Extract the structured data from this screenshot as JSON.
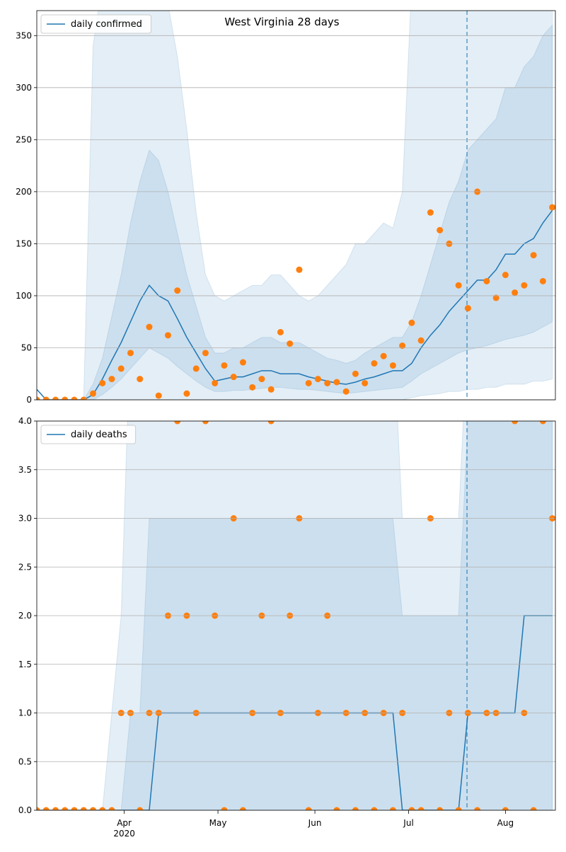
{
  "chart_data": [
    {
      "type": "line",
      "title": "West Virginia 28 days",
      "categories": [
        null,
        null,
        null,
        null,
        null,
        null,
        null,
        null,
        null,
        null,
        null,
        null,
        null,
        null,
        null,
        null,
        null,
        null,
        null,
        null,
        null,
        null,
        null,
        null,
        null,
        null,
        null,
        null,
        null,
        null,
        null,
        null,
        null,
        null,
        null,
        null,
        null,
        null,
        null,
        null,
        null,
        null,
        null,
        null,
        null,
        null,
        null,
        null,
        null,
        null,
        null,
        null,
        null,
        null,
        null,
        null
      ],
      "xlim": [
        0,
        55.33
      ],
      "ylim": [
        0,
        374
      ],
      "yticks": [
        0,
        50,
        100,
        150,
        200,
        250,
        300,
        350
      ],
      "grid": true,
      "legend": "upper left",
      "forecast_start": 45.9,
      "series": [
        {
          "name": "daily confirmed",
          "color": "#1f77b4",
          "values": [
            10,
            0,
            0,
            0,
            0,
            0,
            5,
            20,
            38,
            55,
            75,
            95,
            110,
            100,
            95,
            78,
            60,
            45,
            30,
            18,
            20,
            22,
            22,
            25,
            28,
            28,
            25,
            25,
            25,
            22,
            20,
            18,
            16,
            15,
            17,
            20,
            22,
            25,
            28,
            28,
            35,
            50,
            62,
            72,
            85,
            95,
            105,
            115,
            115,
            125,
            140,
            140,
            150,
            155,
            170,
            182
          ]
        },
        {
          "color": "#ff7f0e",
          "values": [
            0,
            0,
            0,
            0,
            0,
            0,
            6,
            16,
            20,
            30,
            45,
            20,
            70,
            4,
            62,
            105,
            6,
            30,
            45,
            16,
            33,
            22,
            36,
            12,
            20,
            10,
            65,
            54,
            125,
            16,
            20,
            16,
            17,
            8,
            25,
            16,
            35,
            42,
            33,
            52,
            74,
            57,
            180,
            163,
            150,
            110,
            88,
            200,
            114,
            98,
            120,
            103,
            110,
            139,
            114,
            185
          ]
        }
      ],
      "bands": [
        {
          "color": "#1f77b4",
          "lower": [
            0,
            0,
            0,
            0,
            0,
            0,
            0,
            0,
            0,
            0,
            0,
            0,
            0,
            0,
            0,
            0,
            0,
            0,
            0,
            0,
            0,
            0,
            0,
            0,
            0,
            0,
            0,
            0,
            0,
            0,
            0,
            0,
            0,
            0,
            0,
            0,
            0,
            0,
            0,
            0,
            2,
            4,
            5,
            6,
            8,
            8,
            10,
            10,
            12,
            12,
            15,
            15,
            15,
            18,
            18,
            20
          ],
          "upper": [
            0,
            0,
            0,
            0,
            0,
            0,
            340,
            400,
            400,
            400,
            400,
            400,
            400,
            400,
            380,
            330,
            260,
            180,
            120,
            100,
            95,
            100,
            105,
            110,
            110,
            120,
            120,
            110,
            100,
            95,
            100,
            110,
            120,
            130,
            150,
            150,
            160,
            170,
            165,
            200,
            400,
            400,
            400,
            400,
            400,
            400,
            400,
            400,
            400,
            400,
            400,
            400,
            400,
            400,
            400,
            400
          ]
        },
        {
          "color": "#1f77b4",
          "lower": [
            0,
            0,
            0,
            0,
            0,
            0,
            0,
            5,
            12,
            20,
            30,
            40,
            50,
            45,
            40,
            32,
            25,
            18,
            12,
            8,
            8,
            9,
            9,
            10,
            11,
            12,
            12,
            11,
            10,
            10,
            9,
            8,
            7,
            6,
            7,
            8,
            9,
            10,
            11,
            12,
            18,
            25,
            30,
            35,
            40,
            45,
            48,
            50,
            52,
            55,
            58,
            60,
            62,
            65,
            70,
            75
          ],
          "upper": [
            0,
            0,
            0,
            0,
            0,
            0,
            15,
            40,
            80,
            120,
            170,
            210,
            240,
            230,
            200,
            160,
            120,
            90,
            60,
            45,
            45,
            50,
            50,
            55,
            60,
            60,
            55,
            55,
            55,
            50,
            45,
            40,
            38,
            35,
            38,
            45,
            50,
            55,
            60,
            60,
            75,
            100,
            130,
            160,
            190,
            210,
            240,
            250,
            260,
            270,
            300,
            300,
            320,
            330,
            350,
            360
          ]
        }
      ]
    },
    {
      "type": "line",
      "categories": [
        null,
        null,
        null,
        null,
        null,
        null,
        null,
        null,
        null,
        null,
        null,
        null,
        null,
        null,
        null,
        null,
        null,
        null,
        null,
        null,
        null,
        null,
        null,
        null,
        null,
        null,
        null,
        null,
        null,
        null,
        null,
        null,
        null,
        null,
        null,
        null,
        null,
        null,
        null,
        null,
        null,
        null,
        null,
        null,
        null,
        null,
        null,
        null,
        null,
        null,
        null,
        null,
        null,
        null,
        null,
        null
      ],
      "xlim": [
        0,
        55.33
      ],
      "xticks": [
        {
          "value": 9.33,
          "label": "Apr\n2020"
        },
        {
          "value": 19.33,
          "label": "May"
        },
        {
          "value": 29.67,
          "label": "Jun"
        },
        {
          "value": 39.67,
          "label": "Jul"
        },
        {
          "value": 50,
          "label": "Aug"
        }
      ],
      "ylim": [
        0,
        4
      ],
      "yticks": [
        {
          "value": 0,
          "label": "0.0"
        },
        {
          "value": 0.5,
          "label": "0.5"
        },
        {
          "value": 1,
          "label": "1.0"
        },
        {
          "value": 1.5,
          "label": "1.5"
        },
        {
          "value": 2,
          "label": "2.0"
        },
        {
          "value": 2.5,
          "label": "2.5"
        },
        {
          "value": 3,
          "label": "3.0"
        },
        {
          "value": 3.5,
          "label": "3.5"
        },
        {
          "value": 4,
          "label": "4.0"
        }
      ],
      "grid": true,
      "legend": "upper left",
      "forecast_start": 45.9,
      "series": [
        {
          "name": "daily deaths",
          "color": "#1f77b4",
          "values": [
            0,
            0,
            0,
            0,
            0,
            0,
            0,
            0,
            0,
            0,
            0,
            0,
            0,
            1,
            1,
            1,
            1,
            1,
            1,
            1,
            1,
            1,
            1,
            1,
            1,
            1,
            1,
            1,
            1,
            1,
            1,
            1,
            1,
            1,
            1,
            1,
            1,
            1,
            1,
            0,
            0,
            0,
            0,
            0,
            0,
            0,
            1,
            1,
            1,
            1,
            1,
            1,
            2,
            2,
            2,
            2
          ]
        },
        {
          "color": "#ff7f0e",
          "values": [
            0,
            0,
            0,
            0,
            0,
            0,
            0,
            0,
            0,
            1,
            1,
            0,
            1,
            1,
            2,
            4,
            2,
            1,
            4,
            2,
            0,
            3,
            0,
            1,
            2,
            4,
            1,
            2,
            3,
            0,
            1,
            2,
            0,
            1,
            0,
            1,
            0,
            1,
            0,
            1,
            0,
            0,
            3,
            0,
            1,
            0,
            1,
            0,
            1,
            1,
            0,
            4,
            1,
            0,
            4,
            3
          ]
        }
      ],
      "bands": [
        {
          "color": "#1f77b4",
          "upper": [
            0,
            0,
            0,
            0,
            0,
            0,
            0,
            0,
            1,
            2,
            5,
            5,
            5,
            5,
            5,
            5,
            5,
            5,
            5,
            5,
            5,
            5,
            5,
            5,
            5,
            5,
            5,
            5,
            5,
            5,
            5,
            5,
            5,
            5,
            5,
            5,
            5,
            5,
            5,
            3,
            3,
            3,
            3,
            3,
            3,
            3,
            5,
            5,
            5,
            5,
            5,
            5,
            5,
            5,
            5,
            5
          ]
        },
        {
          "color": "#1f77b4",
          "upper": [
            0,
            0,
            0,
            0,
            0,
            0,
            0,
            0,
            0,
            0,
            1,
            1,
            3,
            3,
            3,
            3,
            3,
            3,
            3,
            3,
            3,
            3,
            3,
            3,
            3,
            3,
            3,
            3,
            3,
            3,
            3,
            3,
            3,
            3,
            3,
            3,
            3,
            3,
            3,
            2,
            2,
            2,
            2,
            2,
            2,
            2,
            4,
            4,
            4,
            4,
            4,
            4,
            4,
            4,
            4,
            4
          ]
        }
      ]
    }
  ]
}
